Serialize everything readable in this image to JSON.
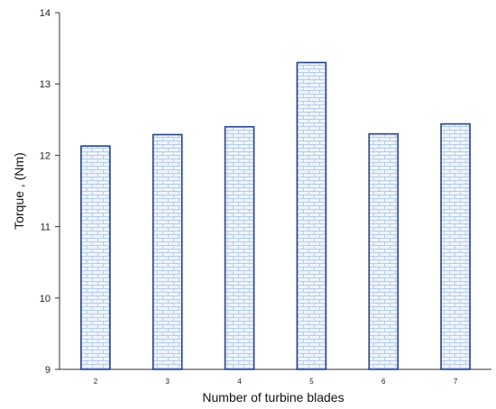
{
  "chart_data": {
    "type": "bar",
    "title": "",
    "xlabel": "Number of turbine blades",
    "ylabel": "Torque , (Nm)",
    "categories": [
      "2",
      "3",
      "4",
      "5",
      "6",
      "7"
    ],
    "values": [
      12.13,
      12.29,
      12.4,
      13.3,
      12.3,
      12.44
    ],
    "ylim": [
      9,
      14
    ],
    "yticks": [
      "9",
      "10",
      "11",
      "12",
      "13",
      "14"
    ],
    "grid": false,
    "legend": "none",
    "colors": {
      "bar_fill": "#eef4fb",
      "bar_pattern": "#a9c4e4",
      "bar_edge": "#24428a",
      "axis": "#333333"
    }
  }
}
